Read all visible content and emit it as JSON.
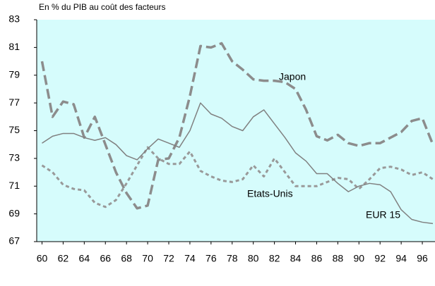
{
  "chart_data": {
    "type": "line",
    "title": "En % du PIB au coût des facteurs",
    "x": [
      60,
      61,
      62,
      63,
      64,
      65,
      66,
      67,
      68,
      69,
      70,
      71,
      72,
      73,
      74,
      75,
      76,
      77,
      78,
      79,
      80,
      81,
      82,
      83,
      84,
      85,
      86,
      87,
      88,
      89,
      90,
      91,
      92,
      93,
      94,
      95,
      96,
      97
    ],
    "series": [
      {
        "name": "Japon",
        "color": "#8c8c8c",
        "style": "dashed",
        "values": [
          80,
          76,
          77.1,
          76.9,
          74.5,
          76,
          74,
          72,
          70.5,
          69.4,
          69.6,
          72.9,
          73,
          74.5,
          77.5,
          81.1,
          81,
          81.3,
          80,
          79.4,
          78.7,
          78.6,
          78.6,
          78.5,
          78,
          76.5,
          74.6,
          74.3,
          74.7,
          74.1,
          73.9,
          74.1,
          74.1,
          74.5,
          74.9,
          75.7,
          75.9,
          74
        ]
      },
      {
        "name": "Etats-Unis",
        "color": "#999999",
        "style": "dotted",
        "values": [
          72.5,
          72,
          71.1,
          70.8,
          70.7,
          69.8,
          69.5,
          70,
          71.2,
          72.5,
          73.8,
          73,
          72.6,
          72.6,
          73.5,
          72.1,
          71.7,
          71.4,
          71.3,
          71.5,
          72.5,
          71.7,
          73,
          72,
          71,
          71,
          71,
          71.3,
          71.6,
          71.5,
          70.8,
          71.5,
          72.3,
          72.4,
          72.2,
          71.8,
          72,
          71.5
        ]
      },
      {
        "name": "EUR 15",
        "color": "#808080",
        "style": "solid",
        "values": [
          74.1,
          74.6,
          74.8,
          74.8,
          74.5,
          74.3,
          74.5,
          74,
          73.2,
          72.9,
          73.7,
          74.4,
          74.1,
          73.8,
          75,
          77,
          76.2,
          75.9,
          75.3,
          75,
          76,
          76.5,
          75.5,
          74.5,
          73.4,
          72.8,
          71.9,
          71.9,
          71.2,
          70.6,
          71,
          71.2,
          71.1,
          70.6,
          69.3,
          68.6,
          68.4,
          68.3
        ]
      }
    ],
    "xlim": [
      59.5,
      97.2
    ],
    "xticks": [
      60,
      62,
      64,
      66,
      68,
      70,
      72,
      74,
      76,
      78,
      80,
      82,
      84,
      86,
      88,
      90,
      92,
      94,
      96
    ],
    "ylim": [
      67,
      83
    ],
    "yticks": [
      67,
      69,
      71,
      73,
      75,
      77,
      79,
      81,
      83
    ]
  }
}
